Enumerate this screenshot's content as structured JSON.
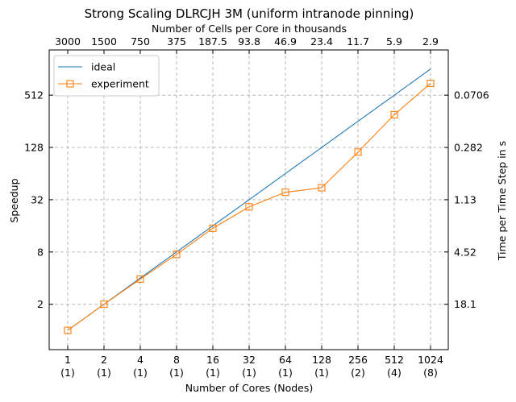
{
  "chart_data": {
    "type": "line",
    "title": "Strong Scaling DLRCJH 3M (uniform intranode pinning)",
    "xlabel": "Number of Cores (Nodes)",
    "ylabel": "Speedup",
    "x2label": "Number of Cells per Core in thousands",
    "y2label": "Time per Time Step in s",
    "xscale": "log2",
    "yscale": "log2",
    "x": [
      1,
      2,
      4,
      8,
      16,
      32,
      64,
      128,
      256,
      512,
      1024
    ],
    "x_tick_labels": [
      "1\n(1)",
      "2\n(1)",
      "4\n(1)",
      "8\n(1)",
      "16\n(1)",
      "32\n(1)",
      "64\n(1)",
      "128\n(1)",
      "256\n(2)",
      "512\n(4)",
      "1024\n(8)"
    ],
    "x2_tick_labels": [
      "3000",
      "1500",
      "750",
      "375",
      "187.5",
      "93.8",
      "46.9",
      "23.4",
      "11.7",
      "5.9",
      "2.9"
    ],
    "y_ticks": [
      2,
      8,
      32,
      128,
      512
    ],
    "y_tick_labels": [
      "2",
      "8",
      "32",
      "128",
      "512"
    ],
    "y2_tick_labels": [
      "18.1",
      "4.52",
      "1.13",
      "0.282",
      "0.0706"
    ],
    "ylim": [
      0.6,
      1700
    ],
    "grid": true,
    "legend_position": "upper-left",
    "series": [
      {
        "name": "ideal",
        "color": "#1f77b4",
        "marker": "none",
        "values": [
          1,
          2,
          4,
          8,
          16,
          32,
          64,
          128,
          256,
          512,
          1024
        ]
      },
      {
        "name": "experiment",
        "color": "#ff7f0e",
        "marker": "square",
        "values": [
          1,
          2,
          3.9,
          7.5,
          15.0,
          26.5,
          39,
          44,
          113,
          305,
          700
        ]
      }
    ]
  }
}
